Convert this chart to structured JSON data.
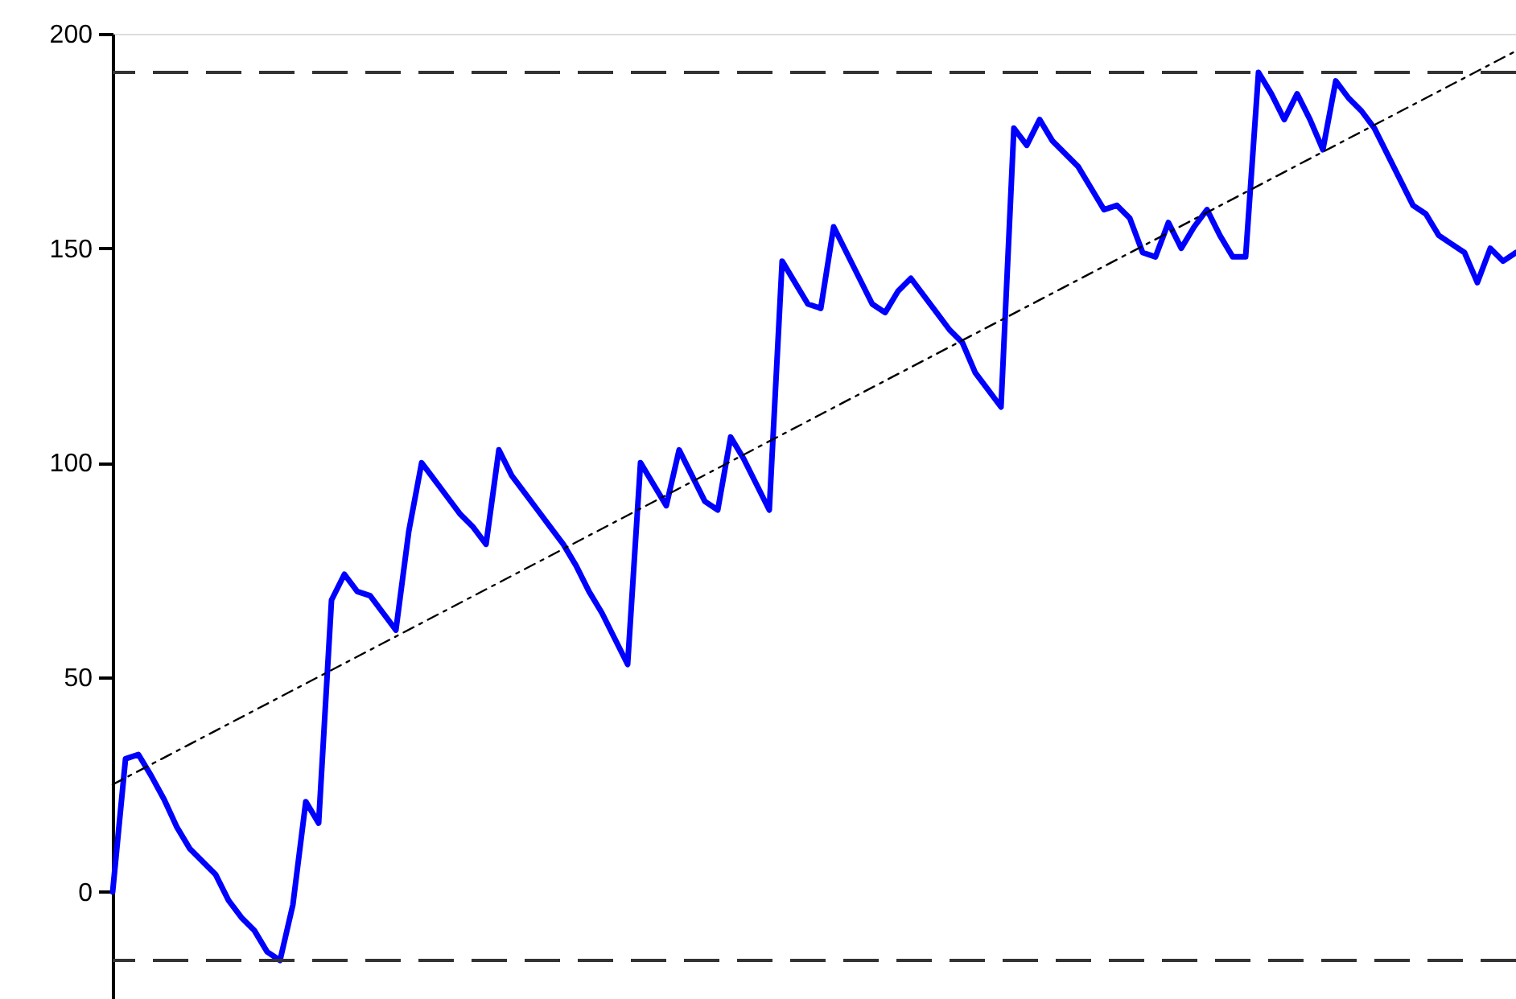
{
  "chart_data": {
    "type": "line",
    "tick_labels": "y",
    "grid": false,
    "legend": false,
    "marker": "none",
    "categories": [
      null,
      null,
      null,
      null,
      null,
      null,
      null,
      null,
      null,
      null,
      null,
      null,
      null,
      null,
      null,
      null,
      null,
      null,
      null,
      null,
      null,
      null,
      null,
      null,
      null,
      null,
      null,
      null,
      null,
      null,
      null,
      null,
      null,
      null,
      null,
      null,
      null,
      null,
      null,
      null,
      null,
      null,
      null,
      null,
      null,
      null,
      null,
      null,
      null,
      null,
      null,
      null,
      null,
      null,
      null,
      null,
      null,
      null,
      null,
      null,
      null,
      null,
      null,
      null,
      null,
      null,
      null,
      null,
      null,
      null,
      null,
      null,
      null,
      null,
      null,
      null,
      null,
      null,
      null,
      null,
      null,
      null,
      null,
      null,
      null,
      null,
      null,
      null,
      null,
      null,
      null,
      null,
      null,
      null,
      null,
      null,
      null,
      null,
      null,
      null,
      null,
      null,
      null,
      null,
      null,
      null,
      null,
      null,
      null,
      null
    ],
    "ylim": [
      -25,
      200
    ],
    "yticks": [
      0,
      50,
      100,
      150,
      200
    ],
    "series": [
      {
        "color": "#0000ff",
        "line_style": "solid",
        "values": [
          0,
          31,
          32,
          27,
          21.5,
          15,
          10,
          7,
          4,
          -2,
          -6,
          -9,
          -14,
          -16,
          -3,
          21,
          16,
          68,
          74,
          70,
          69,
          65,
          61,
          84,
          100,
          96,
          92,
          88,
          85,
          81,
          103,
          97,
          93,
          89,
          85,
          81,
          76,
          70,
          65,
          59,
          53,
          100,
          95,
          90,
          103,
          97,
          91,
          89,
          106,
          101,
          95,
          89,
          147,
          142,
          137,
          136,
          155,
          149,
          143,
          137,
          135,
          140,
          143,
          139,
          135,
          131,
          128,
          121,
          117,
          113,
          178,
          174,
          180,
          175,
          172,
          169,
          164,
          159,
          160,
          157,
          149,
          148,
          156,
          150,
          155,
          159,
          153,
          148,
          148,
          191,
          186,
          180,
          186,
          180,
          173,
          189,
          185,
          182,
          178,
          172,
          166,
          160,
          158,
          153,
          151,
          149,
          142,
          150,
          147,
          149
        ]
      },
      {
        "color": "#000000",
        "line_style": "dashed",
        "values": [
          25,
          null,
          null,
          null,
          null,
          null,
          null,
          null,
          null,
          null,
          null,
          null,
          null,
          null,
          null,
          null,
          null,
          null,
          null,
          null,
          null,
          null,
          null,
          null,
          null,
          null,
          null,
          null,
          null,
          null,
          null,
          null,
          null,
          null,
          null,
          null,
          null,
          null,
          null,
          null,
          null,
          null,
          null,
          null,
          null,
          null,
          null,
          null,
          null,
          null,
          null,
          null,
          null,
          null,
          null,
          null,
          null,
          null,
          null,
          null,
          null,
          null,
          null,
          null,
          null,
          null,
          null,
          null,
          null,
          null,
          null,
          null,
          null,
          null,
          null,
          null,
          null,
          null,
          null,
          null,
          null,
          null,
          null,
          null,
          null,
          null,
          null,
          null,
          null,
          null,
          null,
          null,
          null,
          null,
          null,
          null,
          null,
          null,
          null,
          null,
          null,
          null,
          null,
          null,
          null,
          null,
          null,
          null,
          null,
          196
        ]
      }
    ],
    "ref_lines": [
      {
        "axis": "y",
        "value": 191,
        "color": "#333333",
        "line_style": "dashed"
      },
      {
        "axis": "y",
        "value": -16,
        "color": "#333333",
        "line_style": "dashed"
      }
    ]
  }
}
